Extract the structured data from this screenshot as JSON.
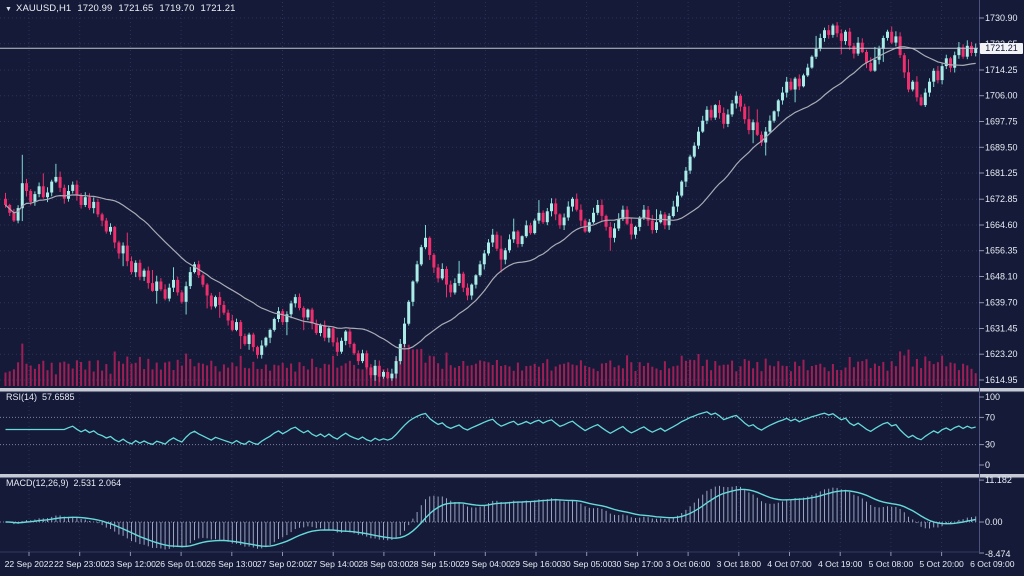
{
  "header": {
    "dropdown_icon": "▼",
    "symbol": "XAUUSD,H1",
    "open": "1720.99",
    "high": "1721.65",
    "low": "1719.70",
    "close": "1721.21"
  },
  "price_axis": {
    "labels": [
      "1730.90",
      "1722.65",
      "1714.25",
      "1706.00",
      "1697.75",
      "1689.50",
      "1681.25",
      "1672.85",
      "1664.60",
      "1656.35",
      "1648.10",
      "1639.70",
      "1631.45",
      "1623.20",
      "1614.95"
    ],
    "current": "1721.21"
  },
  "time_axis": {
    "labels": [
      "22 Sep 2022",
      "22 Sep 23:00",
      "23 Sep 12:00",
      "26 Sep 01:00",
      "26 Sep 13:00",
      "27 Sep 02:00",
      "27 Sep 14:00",
      "28 Sep 03:00",
      "28 Sep 15:00",
      "29 Sep 04:00",
      "29 Sep 16:00",
      "30 Sep 05:00",
      "30 Sep 17:00",
      "3 Oct 06:00",
      "3 Oct 18:00",
      "4 Oct 07:00",
      "4 Oct 19:00",
      "5 Oct 08:00",
      "5 Oct 20:00",
      "6 Oct 09:00"
    ]
  },
  "rsi_panel": {
    "name": "RSI(14)",
    "value": "57.6585",
    "axis": [
      "100",
      "70",
      "30",
      "0"
    ],
    "levels": [
      70,
      30
    ]
  },
  "macd_panel": {
    "name": "MACD(12,26,9)",
    "values": "2.531 2.064",
    "axis_top": "11.182",
    "axis_zero": "0.00",
    "axis_bottom": "-8.474"
  },
  "colors": {
    "background": "#141a37",
    "grid": "#2c335c",
    "bull": "#a9ece8",
    "bull_wick": "#7fd8d3",
    "bear": "#ef2e6e",
    "volume": "#a01e56",
    "ma_line": "#a9abb6",
    "indicator_line": "#66d9db",
    "histogram": "#9aa3c4",
    "separator": "#c6cad4",
    "axis_text": "#e9ecf5",
    "level_line": "#7b82a0",
    "current_line": "#c2c6d0",
    "price_tag_bg": "#f2f3f6",
    "price_tag_text": "#131836",
    "axis_border": "#4a5280",
    "tick": "#8e94ad"
  },
  "chart_data": {
    "type": "candlestick",
    "symbol": "XAUUSD",
    "timeframe": "H1",
    "title": "XAUUSD,H1 1720.99 1721.65 1719.70 1721.21",
    "ylim": [
      1614.95,
      1730.9
    ],
    "current_price": 1721.21,
    "ma_period": 24,
    "rsi_period": 14,
    "rsi_current": 57.6585,
    "macd_params": [
      12,
      26,
      9
    ],
    "macd_current": [
      2.531,
      2.064
    ],
    "macd_range": [
      -8.474,
      11.182
    ],
    "rsi_range": [
      0,
      100
    ],
    "open_first": 1673.0,
    "wick_spikes": [
      {
        "index": 4,
        "high_extra": 8.0
      }
    ],
    "closes": [
      1671.0,
      1668.5,
      1666.0,
      1670.0,
      1678.0,
      1675.5,
      1672.0,
      1674.5,
      1677.0,
      1673.5,
      1675.0,
      1678.5,
      1680.0,
      1676.5,
      1673.0,
      1675.5,
      1677.5,
      1674.0,
      1671.0,
      1673.5,
      1670.0,
      1672.0,
      1668.0,
      1666.0,
      1662.5,
      1664.0,
      1659.0,
      1655.5,
      1658.0,
      1653.0,
      1649.5,
      1652.5,
      1648.0,
      1650.0,
      1646.0,
      1643.5,
      1646.5,
      1644.0,
      1641.0,
      1644.5,
      1647.0,
      1643.0,
      1640.0,
      1645.0,
      1649.5,
      1652.0,
      1648.5,
      1645.5,
      1642.0,
      1638.5,
      1641.5,
      1639.0,
      1636.5,
      1634.0,
      1631.0,
      1633.5,
      1629.0,
      1626.5,
      1629.5,
      1625.5,
      1623.0,
      1626.0,
      1628.5,
      1631.0,
      1634.5,
      1637.0,
      1633.5,
      1636.0,
      1639.5,
      1641.5,
      1638.0,
      1635.0,
      1637.5,
      1633.0,
      1630.0,
      1632.5,
      1628.5,
      1631.5,
      1627.0,
      1624.0,
      1627.5,
      1630.5,
      1626.5,
      1623.5,
      1621.0,
      1623.5,
      1619.0,
      1616.5,
      1619.5,
      1616.0,
      1617.5,
      1615.5,
      1617.0,
      1621.0,
      1626.5,
      1633.0,
      1640.0,
      1646.5,
      1652.0,
      1657.5,
      1660.5,
      1655.0,
      1651.0,
      1647.5,
      1650.5,
      1645.5,
      1643.0,
      1646.0,
      1649.0,
      1644.5,
      1642.0,
      1645.5,
      1648.5,
      1652.0,
      1655.5,
      1659.0,
      1661.5,
      1657.0,
      1653.5,
      1656.5,
      1660.0,
      1662.5,
      1658.5,
      1661.0,
      1664.5,
      1662.0,
      1666.0,
      1668.5,
      1665.5,
      1669.0,
      1671.5,
      1668.0,
      1664.5,
      1667.0,
      1670.5,
      1673.0,
      1669.5,
      1666.0,
      1662.5,
      1665.5,
      1668.5,
      1671.0,
      1667.5,
      1664.0,
      1660.5,
      1663.5,
      1666.5,
      1669.5,
      1665.0,
      1661.5,
      1664.0,
      1667.0,
      1669.5,
      1666.0,
      1663.0,
      1665.5,
      1668.0,
      1664.5,
      1667.5,
      1670.5,
      1674.0,
      1678.5,
      1682.0,
      1686.5,
      1690.0,
      1694.5,
      1698.0,
      1701.5,
      1699.0,
      1703.0,
      1700.5,
      1697.0,
      1700.0,
      1703.5,
      1706.0,
      1702.5,
      1698.5,
      1695.0,
      1697.5,
      1693.5,
      1691.0,
      1694.5,
      1698.0,
      1701.0,
      1704.5,
      1707.0,
      1710.5,
      1708.0,
      1711.5,
      1709.0,
      1712.5,
      1715.0,
      1718.5,
      1721.0,
      1724.5,
      1727.0,
      1725.5,
      1728.5,
      1726.0,
      1723.5,
      1726.5,
      1722.0,
      1719.5,
      1723.0,
      1720.0,
      1716.5,
      1714.0,
      1717.5,
      1721.0,
      1724.5,
      1726.5,
      1723.0,
      1725.0,
      1719.0,
      1713.5,
      1708.0,
      1710.5,
      1705.5,
      1703.0,
      1707.0,
      1710.5,
      1714.0,
      1711.0,
      1715.5,
      1718.0,
      1715.0,
      1719.0,
      1721.5,
      1718.5,
      1722.0,
      1719.7,
      1721.2
    ]
  }
}
